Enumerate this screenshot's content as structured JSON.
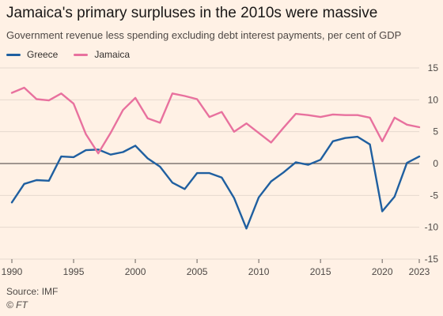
{
  "header": {
    "title": "Jamaica's primary surpluses in the 2010s were massive",
    "subtitle": "Government revenue less spending excluding debt interest payments, per cent of GDP"
  },
  "footer": {
    "source": "Source: IMF",
    "credit": "© FT"
  },
  "colors": {
    "background": "#fff1e5",
    "greece": "#1f5fa0",
    "jamaica": "#e8719e",
    "grid": "#e6d9ce",
    "zero_line": "#66605c"
  },
  "chart_data": {
    "type": "line",
    "title": "Jamaica's primary surpluses in the 2010s were massive",
    "subtitle": "Government revenue less spending excluding debt interest payments, per cent of GDP",
    "xlabel": "",
    "ylabel": "",
    "xlim": [
      1990,
      2023
    ],
    "ylim": [
      -15,
      15
    ],
    "x_ticks": [
      1990,
      1995,
      2000,
      2005,
      2010,
      2015,
      2020,
      2023
    ],
    "y_ticks": [
      15,
      10,
      5,
      0,
      -5,
      -10,
      -15
    ],
    "y_axis_side": "right",
    "grid": true,
    "legend": "top-left",
    "x": [
      1990,
      1991,
      1992,
      1993,
      1994,
      1995,
      1996,
      1997,
      1998,
      1999,
      2000,
      2001,
      2002,
      2003,
      2004,
      2005,
      2006,
      2007,
      2008,
      2009,
      2010,
      2011,
      2012,
      2013,
      2014,
      2015,
      2016,
      2017,
      2018,
      2019,
      2020,
      2021,
      2022,
      2023
    ],
    "series": [
      {
        "name": "Greece",
        "color": "#1f5fa0",
        "values": [
          -6.1,
          -3.2,
          -2.6,
          -2.7,
          1.1,
          1.0,
          2.1,
          2.2,
          1.4,
          1.8,
          2.8,
          0.8,
          -0.5,
          -3.0,
          -4.0,
          -1.5,
          -1.5,
          -2.2,
          -5.4,
          -10.2,
          -5.3,
          -2.8,
          -1.4,
          0.2,
          -0.2,
          0.6,
          3.5,
          4.0,
          4.2,
          3.0,
          -7.5,
          -5.2,
          0.1,
          1.1
        ]
      },
      {
        "name": "Jamaica",
        "color": "#e8719e",
        "values": [
          11.1,
          11.9,
          10.1,
          9.9,
          11.0,
          9.4,
          4.6,
          1.6,
          4.8,
          8.4,
          10.3,
          7.1,
          6.4,
          11.0,
          10.6,
          10.1,
          7.3,
          8.1,
          5.0,
          6.3,
          4.8,
          3.3,
          5.6,
          7.8,
          7.6,
          7.3,
          7.7,
          7.6,
          7.6,
          7.2,
          3.5,
          7.2,
          6.1,
          5.7
        ]
      }
    ]
  }
}
